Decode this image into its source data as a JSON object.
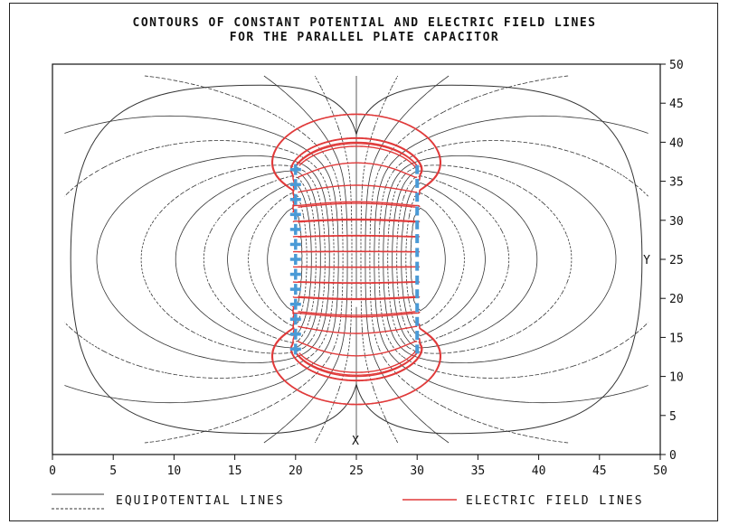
{
  "chart_data": {
    "type": "line",
    "title_line1": "CONTOURS OF CONSTANT POTENTIAL AND ELECTRIC FIELD LINES",
    "title_line2": "FOR THE PARALLEL PLATE CAPACITOR",
    "xlabel": "X",
    "ylabel": "Y",
    "xlim": [
      0,
      50
    ],
    "ylim": [
      0,
      50
    ],
    "x_ticks": [
      0,
      5,
      10,
      15,
      20,
      25,
      30,
      35,
      40,
      45,
      50
    ],
    "y_ticks": [
      0,
      5,
      10,
      15,
      20,
      25,
      30,
      35,
      40,
      45,
      50
    ],
    "plates": [
      {
        "name": "positive-plate",
        "x": 20,
        "y_range": [
          13.5,
          36.5
        ],
        "symbol": "+",
        "color": "#4a9ad6"
      },
      {
        "name": "negative-plate",
        "x": 30,
        "y_range": [
          13.5,
          36.5
        ],
        "symbol": "-",
        "color": "#4a9ad6"
      }
    ],
    "legend": {
      "equipotential_label": "EQUIPOTENTIAL LINES",
      "field_label": "ELECTRIC FIELD LINES",
      "placement": "bottom"
    },
    "colors": {
      "equipotential": "#333333",
      "field": "#e03a3a",
      "plate": "#4a9ad6"
    }
  }
}
